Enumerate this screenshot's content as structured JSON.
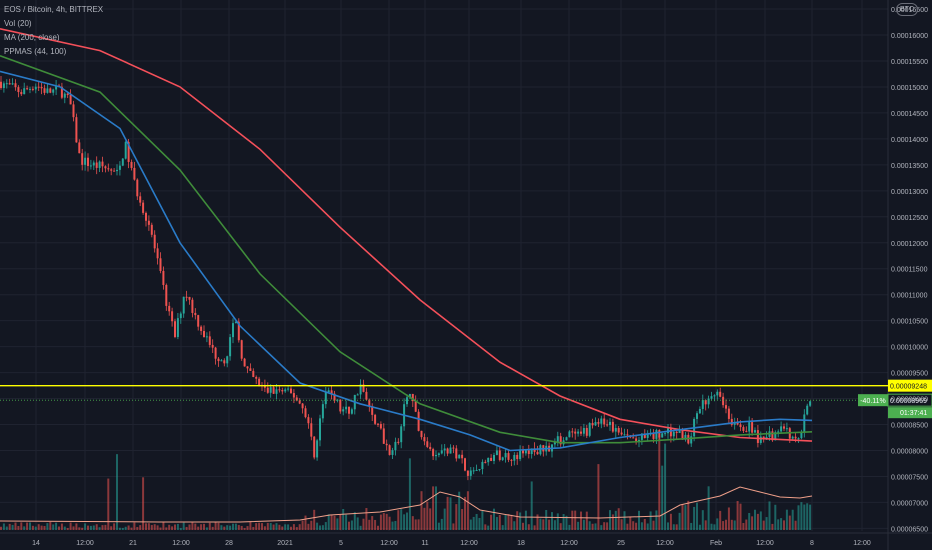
{
  "legend": {
    "symbol": "EOS / Bitcoin, 4h, BITTREX",
    "vol": "Vol (20)",
    "ma": "MA (200, close)",
    "ppma": "PPMAS (44, 100)"
  },
  "currency_badge": "BTC",
  "colors": {
    "background": "#131722",
    "grid": "#1f2330",
    "up": "#26a69a",
    "down": "#ef5350",
    "ma_red": "#f4505a",
    "ppma_green": "#3f8c3a",
    "ppma_blue": "#2a7bc8",
    "vol_ma": "#f0a08a",
    "resistance": "#ffff00",
    "price_label": "#4caf50"
  },
  "chart_data": {
    "type": "candlestick",
    "title": "EOS / Bitcoin, 4h, BITTREX",
    "y_axis": {
      "ticks": [
        "0.00016500",
        "0.00016000",
        "0.00015500",
        "0.00015000",
        "0.00014500",
        "0.00014000",
        "0.00013500",
        "0.00013000",
        "0.00012500",
        "0.00012000",
        "0.00011500",
        "0.00011000",
        "0.00010500",
        "0.00010000",
        "0.00009500",
        "0.00009000",
        "0.00008500",
        "0.00008000",
        "0.00007500",
        "0.00007000",
        "0.00006500"
      ],
      "ylim": [
        6.45e-05,
        0.0001652
      ]
    },
    "x_axis": {
      "ticks": [
        "14",
        "12:00",
        "21",
        "12:00",
        "28",
        "2021",
        "5",
        "12:00",
        "11",
        "12:00",
        "18",
        "12:00",
        "25",
        "12:00",
        "Feb",
        "12:00",
        "8",
        "12:00"
      ]
    },
    "resistance_level": 9.248e-05,
    "resistance_label": "0.00009248",
    "last_price_label": "0.00008969",
    "change_label": "-40.11%",
    "countdown_label": "01:37:41",
    "last_price": 8.969e-05,
    "price_path": [
      [
        0,
        0.000151
      ],
      [
        10,
        0.00015
      ],
      [
        22,
        0.000149
      ],
      [
        35,
        0.0001505
      ],
      [
        48,
        0.000149
      ],
      [
        60,
        0.0001495
      ],
      [
        70,
        0.000147
      ],
      [
        80,
        0.000136
      ],
      [
        92,
        0.000135
      ],
      [
        105,
        0.0001345
      ],
      [
        118,
        0.000133
      ],
      [
        125,
        0.000139
      ],
      [
        135,
        0.000131
      ],
      [
        150,
        0.000123
      ],
      [
        160,
        0.000114
      ],
      [
        168,
        0.000107
      ],
      [
        175,
        0.000102
      ],
      [
        185,
        0.000111
      ],
      [
        195,
        0.000106
      ],
      [
        205,
        0.000102
      ],
      [
        215,
        9.85e-05
      ],
      [
        225,
        9.75e-05
      ],
      [
        235,
        0.000105
      ],
      [
        245,
        9.55e-05
      ],
      [
        255,
        9.35e-05
      ],
      [
        265,
        9.15e-05
      ],
      [
        280,
        9.15e-05
      ],
      [
        295,
        9.05e-05
      ],
      [
        305,
        8.75e-05
      ],
      [
        315,
        7.9e-05
      ],
      [
        322,
        8.85e-05
      ],
      [
        330,
        9.2e-05
      ],
      [
        340,
        8.8e-05
      ],
      [
        350,
        8.75e-05
      ],
      [
        360,
        9.3e-05
      ],
      [
        368,
        8.85e-05
      ],
      [
        378,
        8.5e-05
      ],
      [
        388,
        8e-05
      ],
      [
        398,
        8.15e-05
      ],
      [
        408,
        9.2e-05
      ],
      [
        415,
        8.7e-05
      ],
      [
        422,
        8.25e-05
      ],
      [
        432,
        8e-05
      ],
      [
        445,
        8e-05
      ],
      [
        458,
        7.95e-05
      ],
      [
        470,
        7.55e-05
      ],
      [
        482,
        7.75e-05
      ],
      [
        495,
        7.9e-05
      ],
      [
        510,
        7.9e-05
      ],
      [
        525,
        7.95e-05
      ],
      [
        540,
        8e-05
      ],
      [
        555,
        8.15e-05
      ],
      [
        570,
        8.3e-05
      ],
      [
        580,
        8.25e-05
      ],
      [
        595,
        8.55e-05
      ],
      [
        608,
        8.5e-05
      ],
      [
        620,
        8.3e-05
      ],
      [
        635,
        8.2e-05
      ],
      [
        650,
        8.25e-05
      ],
      [
        665,
        8.35e-05
      ],
      [
        678,
        8.4e-05
      ],
      [
        688,
        8.15e-05
      ],
      [
        698,
        8.8e-05
      ],
      [
        708,
        9e-05
      ],
      [
        718,
        9.2e-05
      ],
      [
        728,
        8.7e-05
      ],
      [
        738,
        8.4e-05
      ],
      [
        750,
        8.45e-05
      ],
      [
        762,
        8.15e-05
      ],
      [
        772,
        8.3e-05
      ],
      [
        782,
        8.45e-05
      ],
      [
        792,
        8.2e-05
      ],
      [
        800,
        8.2e-05
      ],
      [
        806,
        8.85e-05
      ],
      [
        812,
        8.97e-05
      ]
    ],
    "series": [
      {
        "name": "MA (200, close)",
        "points": [
          [
            0,
            0.0001612
          ],
          [
            100,
            0.000157
          ],
          [
            180,
            0.00015
          ],
          [
            260,
            0.000138
          ],
          [
            340,
            0.000123
          ],
          [
            420,
            0.000109
          ],
          [
            500,
            9.7e-05
          ],
          [
            560,
            9.05e-05
          ],
          [
            620,
            8.6e-05
          ],
          [
            680,
            8.4e-05
          ],
          [
            740,
            8.25e-05
          ],
          [
            812,
            8.18e-05
          ]
        ]
      },
      {
        "name": "PPMAS (44, 100)",
        "points": [
          [
            0,
            0.000156
          ],
          [
            100,
            0.000149
          ],
          [
            180,
            0.000134
          ],
          [
            260,
            0.000114
          ],
          [
            340,
            9.9e-05
          ],
          [
            420,
            8.9e-05
          ],
          [
            500,
            8.35e-05
          ],
          [
            560,
            8.15e-05
          ],
          [
            620,
            8.15e-05
          ],
          [
            680,
            8.22e-05
          ],
          [
            740,
            8.3e-05
          ],
          [
            812,
            8.36e-05
          ]
        ]
      },
      {
        "name": "PPMAS (44, 100)",
        "points": [
          [
            0,
            0.000153
          ],
          [
            60,
            0.00015
          ],
          [
            120,
            0.000142
          ],
          [
            180,
            0.00012
          ],
          [
            240,
            0.000104
          ],
          [
            300,
            9.3e-05
          ],
          [
            360,
            8.9e-05
          ],
          [
            420,
            8.6e-05
          ],
          [
            470,
            8.3e-05
          ],
          [
            510,
            8e-05
          ],
          [
            560,
            8.05e-05
          ],
          [
            620,
            8.25e-05
          ],
          [
            680,
            8.4e-05
          ],
          [
            740,
            8.55e-05
          ],
          [
            780,
            8.6e-05
          ],
          [
            812,
            8.58e-05
          ]
        ]
      }
    ]
  }
}
